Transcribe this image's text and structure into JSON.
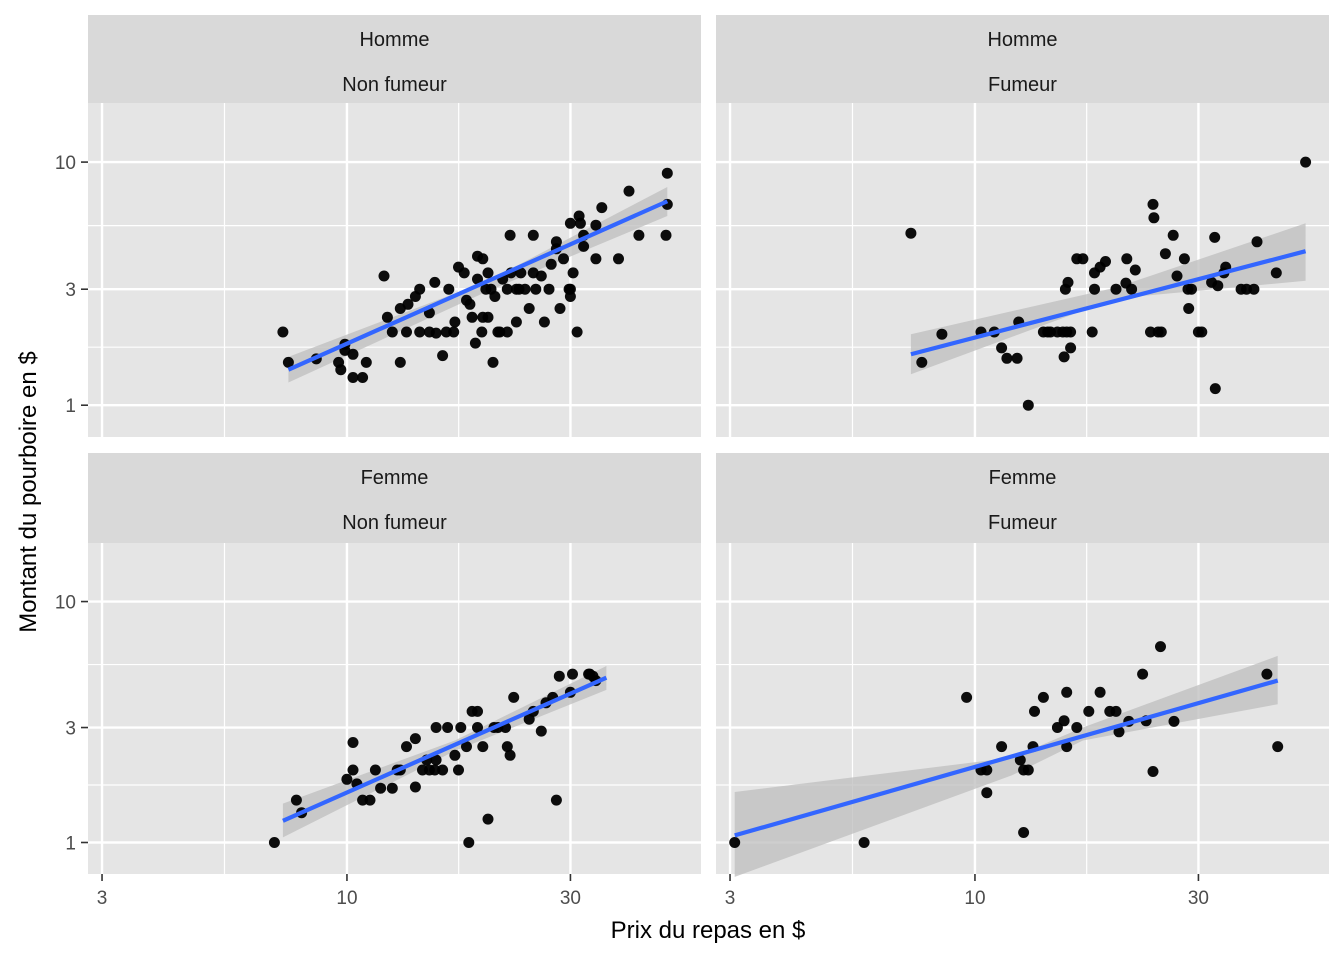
{
  "chart_data": {
    "type": "scatter",
    "x_scale": "log10",
    "y_scale": "log10",
    "xlabel": "Prix du repas en $",
    "ylabel": "Montant du pourboire en $",
    "xlim": [
      2.8,
      57
    ],
    "ylim": [
      0.74,
      17.5
    ],
    "x_ticks": [
      3,
      10,
      30
    ],
    "x_tick_labels": [
      "3",
      "10",
      "30"
    ],
    "y_ticks": [
      1,
      3,
      10
    ],
    "y_tick_labels": [
      "1",
      "3",
      "10"
    ],
    "colors": {
      "panel_bg": "#E5E5E5",
      "strip_bg": "#D9D9D9",
      "grid": "#FFFFFF",
      "points": "#000000",
      "fit_line": "#3366FF",
      "ribbon": "#BDBDBD"
    },
    "panels": [
      {
        "strip_top": "Homme",
        "strip_bottom": "Non fumeur",
        "fit": {
          "x": [
            7.5,
            48.3
          ],
          "y": [
            1.4,
            6.9
          ]
        },
        "ribbon": {
          "x": [
            7.5,
            20,
            48.3
          ],
          "lower": [
            1.24,
            2.95,
            6.0
          ],
          "upper": [
            1.58,
            3.25,
            7.9
          ]
        },
        "points": [
          [
            7.3,
            2.0
          ],
          [
            7.5,
            1.5
          ],
          [
            8.6,
            1.55
          ],
          [
            9.6,
            1.5
          ],
          [
            9.7,
            1.4
          ],
          [
            9.9,
            1.68
          ],
          [
            9.9,
            1.78
          ],
          [
            10.3,
            1.3
          ],
          [
            10.3,
            1.62
          ],
          [
            10.8,
            1.3
          ],
          [
            11.0,
            1.5
          ],
          [
            12.0,
            3.4
          ],
          [
            12.2,
            2.3
          ],
          [
            12.5,
            2.0
          ],
          [
            13.0,
            1.5
          ],
          [
            13.0,
            2.5
          ],
          [
            13.4,
            2.0
          ],
          [
            13.5,
            2.6
          ],
          [
            14.0,
            2.8
          ],
          [
            14.3,
            2.0
          ],
          [
            14.3,
            3.0
          ],
          [
            15.0,
            2.0
          ],
          [
            15.0,
            2.4
          ],
          [
            15.4,
            3.2
          ],
          [
            15.5,
            1.98
          ],
          [
            16.0,
            1.6
          ],
          [
            16.3,
            2.0
          ],
          [
            16.5,
            3.0
          ],
          [
            16.9,
            2.0
          ],
          [
            17.0,
            2.2
          ],
          [
            17.3,
            3.7
          ],
          [
            17.8,
            3.5
          ],
          [
            18.0,
            2.7
          ],
          [
            18.3,
            2.6
          ],
          [
            18.5,
            2.3
          ],
          [
            18.8,
            1.8
          ],
          [
            19.0,
            3.3
          ],
          [
            19.0,
            4.1
          ],
          [
            19.4,
            2.0
          ],
          [
            19.5,
            2.3
          ],
          [
            19.5,
            4.0
          ],
          [
            19.8,
            3.0
          ],
          [
            20.0,
            2.3
          ],
          [
            20.0,
            3.5
          ],
          [
            20.3,
            3.0
          ],
          [
            20.5,
            1.5
          ],
          [
            20.7,
            2.8
          ],
          [
            21.0,
            2.0
          ],
          [
            21.2,
            2.0
          ],
          [
            21.5,
            3.3
          ],
          [
            22.0,
            2.0
          ],
          [
            22.0,
            3.0
          ],
          [
            22.3,
            5.0
          ],
          [
            22.4,
            3.5
          ],
          [
            23.0,
            2.2
          ],
          [
            23.0,
            3.0
          ],
          [
            23.3,
            3.0
          ],
          [
            23.5,
            3.5
          ],
          [
            24.0,
            3.0
          ],
          [
            24.5,
            2.5
          ],
          [
            25.0,
            3.5
          ],
          [
            25.0,
            5.0
          ],
          [
            25.3,
            3.0
          ],
          [
            26.0,
            3.4
          ],
          [
            26.4,
            2.2
          ],
          [
            27.0,
            3.0
          ],
          [
            27.3,
            3.8
          ],
          [
            28.0,
            4.7
          ],
          [
            28.0,
            4.4
          ],
          [
            28.5,
            2.5
          ],
          [
            29.0,
            4.0
          ],
          [
            29.8,
            3.0
          ],
          [
            30.0,
            2.8
          ],
          [
            30.0,
            3.0
          ],
          [
            30.0,
            5.6
          ],
          [
            30.4,
            3.5
          ],
          [
            31.0,
            2.0
          ],
          [
            31.3,
            6.0
          ],
          [
            31.5,
            5.6
          ],
          [
            32.0,
            4.5
          ],
          [
            32.0,
            5.0
          ],
          [
            34.0,
            4.0
          ],
          [
            34.0,
            5.5
          ],
          [
            35.0,
            6.5
          ],
          [
            38.0,
            4.0
          ],
          [
            40.0,
            7.6
          ],
          [
            42.0,
            5.0
          ],
          [
            48.0,
            5.0
          ],
          [
            48.3,
            6.7
          ],
          [
            48.3,
            9.0
          ]
        ]
      },
      {
        "strip_top": "Homme",
        "strip_bottom": "Fumeur",
        "fit": {
          "x": [
            7.3,
            50.8
          ],
          "y": [
            1.62,
            4.3
          ]
        },
        "ribbon": {
          "x": [
            7.3,
            20,
            50.8
          ],
          "lower": [
            1.34,
            2.75,
            3.25
          ],
          "upper": [
            1.96,
            3.05,
            5.6
          ]
        },
        "points": [
          [
            7.3,
            5.1
          ],
          [
            7.7,
            1.5
          ],
          [
            8.5,
            1.96
          ],
          [
            10.3,
            2.0
          ],
          [
            11.0,
            2.0
          ],
          [
            11.4,
            1.72
          ],
          [
            11.7,
            1.56
          ],
          [
            12.3,
            1.56
          ],
          [
            12.4,
            2.2
          ],
          [
            13.0,
            1.0
          ],
          [
            14.0,
            2.0
          ],
          [
            14.3,
            2.0
          ],
          [
            14.5,
            2.0
          ],
          [
            15.0,
            2.0
          ],
          [
            15.4,
            2.0
          ],
          [
            15.5,
            1.58
          ],
          [
            15.6,
            3.0
          ],
          [
            15.7,
            2.0
          ],
          [
            15.8,
            3.2
          ],
          [
            16.0,
            1.72
          ],
          [
            16.0,
            2.0
          ],
          [
            16.5,
            4.0
          ],
          [
            17.0,
            4.0
          ],
          [
            17.8,
            2.0
          ],
          [
            18.0,
            3.0
          ],
          [
            18.0,
            3.5
          ],
          [
            18.5,
            3.7
          ],
          [
            19.0,
            3.9
          ],
          [
            20.0,
            3.0
          ],
          [
            21.0,
            3.18
          ],
          [
            21.1,
            4.0
          ],
          [
            21.6,
            3.0
          ],
          [
            22.0,
            3.6
          ],
          [
            23.7,
            2.0
          ],
          [
            24.0,
            6.7
          ],
          [
            24.1,
            5.9
          ],
          [
            24.6,
            2.0
          ],
          [
            25.0,
            2.0
          ],
          [
            25.5,
            4.2
          ],
          [
            26.5,
            5.0
          ],
          [
            27.0,
            3.4
          ],
          [
            28.0,
            4.0
          ],
          [
            28.5,
            3.0
          ],
          [
            28.6,
            2.5
          ],
          [
            29.0,
            3.0
          ],
          [
            30.0,
            2.0
          ],
          [
            30.5,
            2.0
          ],
          [
            32.0,
            3.2
          ],
          [
            32.5,
            4.9
          ],
          [
            32.6,
            1.17
          ],
          [
            33.0,
            3.1
          ],
          [
            34.0,
            3.5
          ],
          [
            34.3,
            3.7
          ],
          [
            37.0,
            3.0
          ],
          [
            38.0,
            3.0
          ],
          [
            39.4,
            3.0
          ],
          [
            40.0,
            4.7
          ],
          [
            44.0,
            3.5
          ],
          [
            50.8,
            10.0
          ]
        ]
      },
      {
        "strip_top": "Femme",
        "strip_bottom": "Non fumeur",
        "fit": {
          "x": [
            7.3,
            35.8
          ],
          "y": [
            1.23,
            4.83
          ]
        },
        "ribbon": {
          "x": [
            7.3,
            17,
            35.8
          ],
          "lower": [
            1.05,
            2.4,
            4.3
          ],
          "upper": [
            1.45,
            2.65,
            5.4
          ]
        },
        "points": [
          [
            7.0,
            1.0
          ],
          [
            7.8,
            1.5
          ],
          [
            8.0,
            1.33
          ],
          [
            10.0,
            1.83
          ],
          [
            10.3,
            2.0
          ],
          [
            10.3,
            2.6
          ],
          [
            10.5,
            1.75
          ],
          [
            10.8,
            1.5
          ],
          [
            11.2,
            1.5
          ],
          [
            11.5,
            2.0
          ],
          [
            11.8,
            1.68
          ],
          [
            12.5,
            1.68
          ],
          [
            12.8,
            2.0
          ],
          [
            13.0,
            2.0
          ],
          [
            13.4,
            2.5
          ],
          [
            14.0,
            1.7
          ],
          [
            14.0,
            2.7
          ],
          [
            14.5,
            2.0
          ],
          [
            14.8,
            2.2
          ],
          [
            15.0,
            2.0
          ],
          [
            15.4,
            2.0
          ],
          [
            15.5,
            2.2
          ],
          [
            15.5,
            3.0
          ],
          [
            16.0,
            2.0
          ],
          [
            16.4,
            3.0
          ],
          [
            17.0,
            2.3
          ],
          [
            17.3,
            2.0
          ],
          [
            17.5,
            3.0
          ],
          [
            18.0,
            2.5
          ],
          [
            18.2,
            1.0
          ],
          [
            18.5,
            3.5
          ],
          [
            19.0,
            3.0
          ],
          [
            19.0,
            3.5
          ],
          [
            19.5,
            2.5
          ],
          [
            20.0,
            1.25
          ],
          [
            20.6,
            3.0
          ],
          [
            21.0,
            3.0
          ],
          [
            21.8,
            3.0
          ],
          [
            22.0,
            2.5
          ],
          [
            22.3,
            2.3
          ],
          [
            22.7,
            4.0
          ],
          [
            24.5,
            3.25
          ],
          [
            25.0,
            3.5
          ],
          [
            26.0,
            2.9
          ],
          [
            26.6,
            3.8
          ],
          [
            27.5,
            4.0
          ],
          [
            28.0,
            1.5
          ],
          [
            28.4,
            4.9
          ],
          [
            30.0,
            4.2
          ],
          [
            30.3,
            5.0
          ],
          [
            32.8,
            5.0
          ],
          [
            33.0,
            5.0
          ],
          [
            33.5,
            4.9
          ],
          [
            34.0,
            4.7
          ]
        ]
      },
      {
        "strip_top": "Femme",
        "strip_bottom": "Fumeur",
        "fit": {
          "x": [
            3.07,
            44.3
          ],
          "y": [
            1.07,
            4.7
          ]
        },
        "ribbon": {
          "x": [
            3.07,
            12,
            17,
            44.3
          ],
          "lower": [
            0.72,
            1.9,
            2.65,
            3.75
          ],
          "upper": [
            1.62,
            2.25,
            3.0,
            5.95
          ]
        },
        "points": [
          [
            3.07,
            1.0
          ],
          [
            5.8,
            1.0
          ],
          [
            9.6,
            4.0
          ],
          [
            10.3,
            2.0
          ],
          [
            10.6,
            2.0
          ],
          [
            10.6,
            1.61
          ],
          [
            11.4,
            2.5
          ],
          [
            12.5,
            2.2
          ],
          [
            12.7,
            1.1
          ],
          [
            12.7,
            2.0
          ],
          [
            13.0,
            2.0
          ],
          [
            13.3,
            2.5
          ],
          [
            13.4,
            3.5
          ],
          [
            14.0,
            4.0
          ],
          [
            15.0,
            3.0
          ],
          [
            15.5,
            3.2
          ],
          [
            15.7,
            4.2
          ],
          [
            15.7,
            2.5
          ],
          [
            16.5,
            3.0
          ],
          [
            17.5,
            3.5
          ],
          [
            18.5,
            4.2
          ],
          [
            19.4,
            3.5
          ],
          [
            20.0,
            3.5
          ],
          [
            20.3,
            2.88
          ],
          [
            21.3,
            3.18
          ],
          [
            22.8,
            5.0
          ],
          [
            23.2,
            3.2
          ],
          [
            24.0,
            1.97
          ],
          [
            24.9,
            6.5
          ],
          [
            26.6,
            3.18
          ],
          [
            42.0,
            5.0
          ],
          [
            44.3,
            2.5
          ]
        ]
      }
    ]
  }
}
